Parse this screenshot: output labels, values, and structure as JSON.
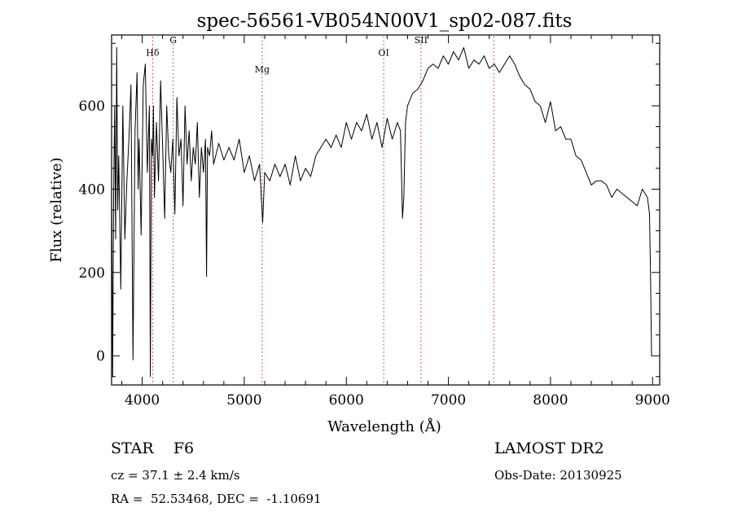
{
  "chart_data": {
    "type": "line",
    "title": "spec-56561-VB054N00V1_sp02-087.fits",
    "xlabel": "Wavelength (Å)",
    "ylabel": "Flux (relative)",
    "xlim": [
      3700,
      9070
    ],
    "ylim": [
      -70,
      770
    ],
    "xticks": [
      4000,
      5000,
      6000,
      7000,
      8000,
      9000
    ],
    "yticks": [
      0,
      200,
      400,
      600
    ],
    "x_minor_step": 200,
    "y_minor_step": 50,
    "series_color": "#000000",
    "line_marker_color": "#c62828",
    "series": [
      {
        "x": [
          3700,
          3710,
          3720,
          3730,
          3740,
          3750,
          3760,
          3770,
          3790,
          3810,
          3830,
          3850,
          3870,
          3890,
          3910,
          3930,
          3950,
          3960,
          3970,
          3990,
          4010,
          4030,
          4050,
          4070,
          4080,
          4090,
          4102,
          4110,
          4120,
          4140,
          4160,
          4180,
          4200,
          4220,
          4240,
          4260,
          4280,
          4300,
          4320,
          4340,
          4360,
          4380,
          4400,
          4420,
          4440,
          4460,
          4480,
          4500,
          4520,
          4540,
          4560,
          4580,
          4600,
          4620,
          4630,
          4640,
          4660,
          4680,
          4700,
          4750,
          4800,
          4850,
          4900,
          4950,
          5000,
          5050,
          5100,
          5150,
          5180,
          5200,
          5250,
          5300,
          5350,
          5400,
          5450,
          5500,
          5550,
          5600,
          5650,
          5700,
          5750,
          5800,
          5850,
          5900,
          5950,
          6000,
          6050,
          6100,
          6150,
          6200,
          6250,
          6300,
          6350,
          6400,
          6450,
          6500,
          6530,
          6550,
          6563,
          6580,
          6600,
          6650,
          6700,
          6750,
          6800,
          6850,
          6900,
          6950,
          7000,
          7050,
          7100,
          7150,
          7200,
          7250,
          7300,
          7350,
          7400,
          7450,
          7500,
          7550,
          7600,
          7650,
          7700,
          7750,
          7800,
          7850,
          7900,
          7950,
          8000,
          8050,
          8100,
          8150,
          8200,
          8250,
          8300,
          8350,
          8400,
          8450,
          8500,
          8550,
          8600,
          8650,
          8700,
          8750,
          8800,
          8850,
          8900,
          8950,
          8970,
          8980,
          8990,
          9000
        ],
        "y": [
          420,
          -50,
          380,
          600,
          280,
          740,
          350,
          480,
          160,
          600,
          280,
          420,
          520,
          650,
          -10,
          540,
          680,
          400,
          520,
          290,
          650,
          700,
          440,
          600,
          -50,
          520,
          480,
          600,
          380,
          560,
          420,
          660,
          500,
          330,
          600,
          480,
          440,
          520,
          340,
          620,
          480,
          520,
          360,
          600,
          460,
          540,
          420,
          500,
          460,
          560,
          380,
          500,
          440,
          520,
          190,
          500,
          480,
          540,
          460,
          510,
          470,
          500,
          470,
          520,
          440,
          480,
          420,
          460,
          320,
          440,
          420,
          460,
          430,
          460,
          410,
          480,
          420,
          450,
          430,
          480,
          500,
          520,
          500,
          530,
          500,
          560,
          520,
          560,
          540,
          580,
          520,
          560,
          500,
          570,
          520,
          560,
          540,
          330,
          380,
          560,
          600,
          630,
          640,
          660,
          690,
          700,
          690,
          720,
          700,
          730,
          710,
          740,
          690,
          710,
          700,
          720,
          690,
          700,
          680,
          700,
          720,
          700,
          670,
          650,
          640,
          610,
          600,
          560,
          610,
          540,
          550,
          520,
          520,
          480,
          470,
          440,
          410,
          420,
          420,
          410,
          380,
          400,
          390,
          380,
          370,
          360,
          400,
          380,
          340,
          200,
          0,
          0
        ]
      }
    ],
    "line_markers": [
      {
        "label": "Hδ",
        "x": 4102,
        "label_y": 720
      },
      {
        "label": "G",
        "x": 4304,
        "label_y": 750
      },
      {
        "label": "Mg",
        "x": 5175,
        "label_y": 680
      },
      {
        "label": "OI",
        "x": 6366,
        "label_y": 720
      },
      {
        "label": "SII",
        "x": 6731,
        "label_y": 750
      },
      {
        "label": "",
        "x": 7444,
        "label_y": 0
      }
    ]
  },
  "footer": {
    "object": "STAR    F6",
    "survey": "LAMOST DR2",
    "redshift": "cz = 37.1 ± 2.4 km/s",
    "obs_date": "Obs-Date: 20130925",
    "coords": "RA =  52.53468, DEC =  -1.10691"
  }
}
